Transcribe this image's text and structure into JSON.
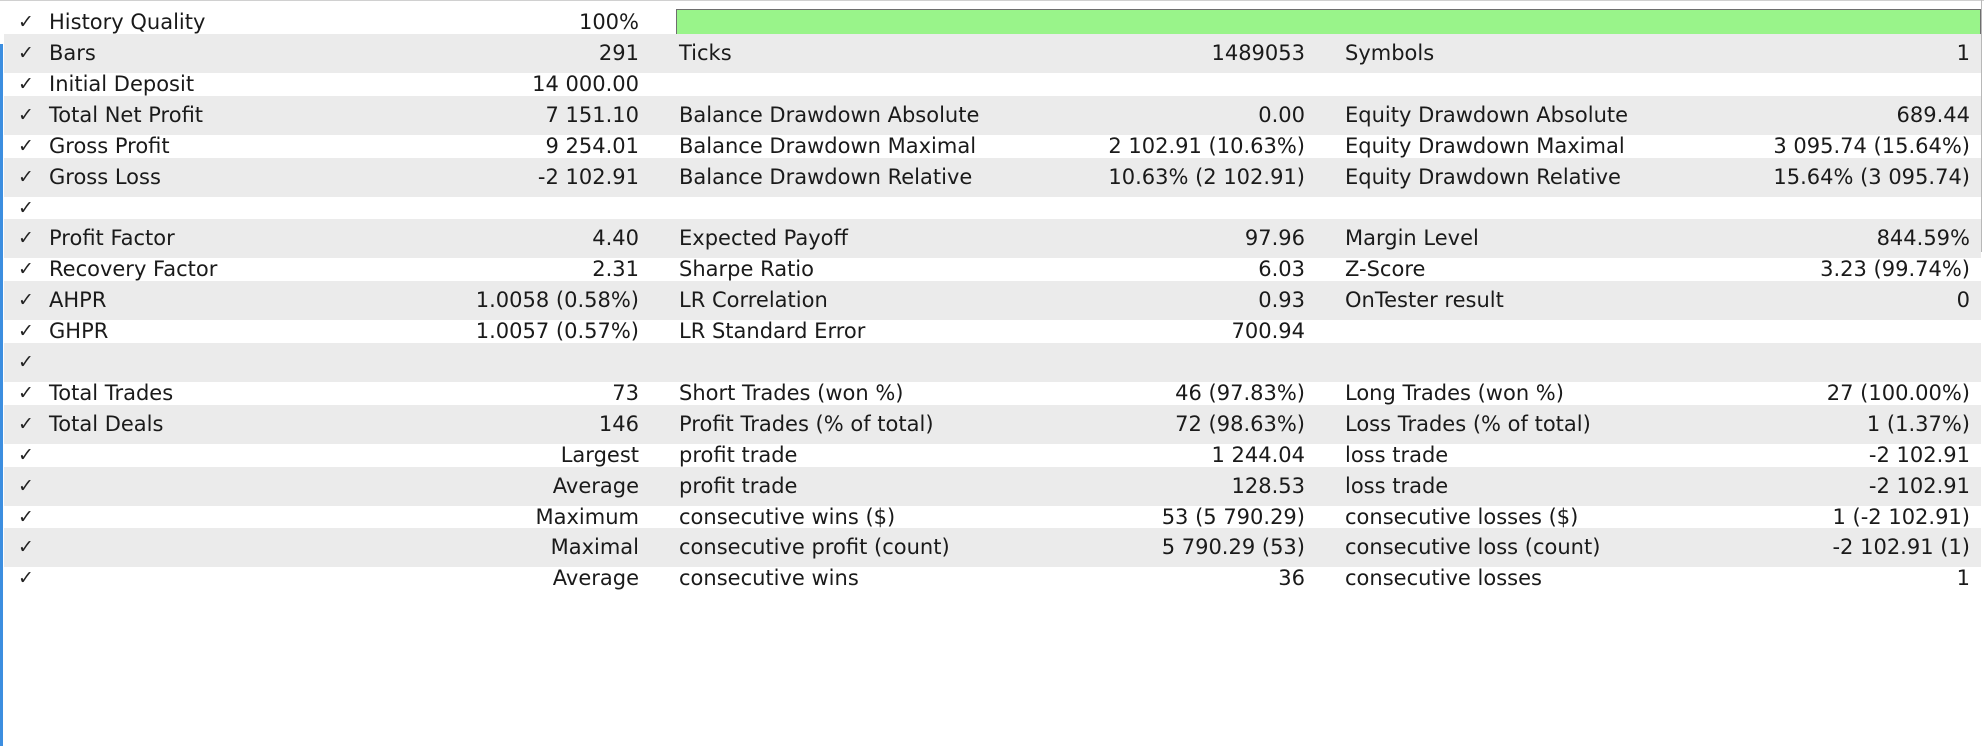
{
  "colors": {
    "quality_bar": "#99f48a",
    "row_shade": "#ebebeb",
    "accent_edge": "#3c8ee0"
  },
  "check_icon": "check-icon",
  "history_quality": {
    "label": "History Quality",
    "value": "100%",
    "fill_fraction": 1.0
  },
  "rows": [
    {
      "label1": "Bars",
      "value1": "291",
      "label2": "Ticks",
      "value2": "1489053",
      "label3": "Symbols",
      "value3": "1"
    },
    {
      "label1": "Initial Deposit",
      "value1": "14 000.00",
      "label2": "",
      "value2": "",
      "label3": "",
      "value3": ""
    },
    {
      "label1": "Total Net Profit",
      "value1": "7 151.10",
      "label2": "Balance Drawdown Absolute",
      "value2": "0.00",
      "label3": "Equity Drawdown Absolute",
      "value3": "689.44"
    },
    {
      "label1": "Gross Profit",
      "value1": "9 254.01",
      "label2": "Balance Drawdown Maximal",
      "value2": "2 102.91 (10.63%)",
      "label3": "Equity Drawdown Maximal",
      "value3": "3 095.74 (15.64%)"
    },
    {
      "label1": "Gross Loss",
      "value1": "-2 102.91",
      "label2": "Balance Drawdown Relative",
      "value2": "10.63% (2 102.91)",
      "label3": "Equity Drawdown Relative",
      "value3": "15.64% (3 095.74)"
    },
    {
      "label1": "",
      "value1": "",
      "label2": "",
      "value2": "",
      "label3": "",
      "value3": ""
    },
    {
      "label1": "Profit Factor",
      "value1": "4.40",
      "label2": "Expected Payoff",
      "value2": "97.96",
      "label3": "Margin Level",
      "value3": "844.59%"
    },
    {
      "label1": "Recovery Factor",
      "value1": "2.31",
      "label2": "Sharpe Ratio",
      "value2": "6.03",
      "label3": "Z-Score",
      "value3": "3.23 (99.74%)"
    },
    {
      "label1": "AHPR",
      "value1": "1.0058 (0.58%)",
      "label2": "LR Correlation",
      "value2": "0.93",
      "label3": "OnTester result",
      "value3": "0"
    },
    {
      "label1": "GHPR",
      "value1": "1.0057 (0.57%)",
      "label2": "LR Standard Error",
      "value2": "700.94",
      "label3": "",
      "value3": ""
    },
    {
      "label1": "",
      "value1": "",
      "label2": "",
      "value2": "",
      "label3": "",
      "value3": ""
    },
    {
      "label1": "Total Trades",
      "value1": "73",
      "label2": "Short Trades (won %)",
      "value2": "46 (97.83%)",
      "label3": "Long Trades (won %)",
      "value3": "27 (100.00%)"
    },
    {
      "label1": "Total Deals",
      "value1": "146",
      "label2": "Profit Trades (% of total)",
      "value2": "72 (98.63%)",
      "label3": "Loss Trades (% of total)",
      "value3": "1 (1.37%)"
    },
    {
      "label1": "",
      "value1": "Largest",
      "label2": "profit trade",
      "value2": "1 244.04",
      "label3": "loss trade",
      "value3": "-2 102.91"
    },
    {
      "label1": "",
      "value1": "Average",
      "label2": "profit trade",
      "value2": "128.53",
      "label3": "loss trade",
      "value3": "-2 102.91"
    },
    {
      "label1": "",
      "value1": "Maximum",
      "label2": "consecutive wins ($)",
      "value2": "53 (5 790.29)",
      "label3": "consecutive losses ($)",
      "value3": "1 (-2 102.91)"
    },
    {
      "label1": "",
      "value1": "Maximal",
      "label2": "consecutive profit (count)",
      "value2": "5 790.29 (53)",
      "label3": "consecutive loss (count)",
      "value3": "-2 102.91 (1)"
    },
    {
      "label1": "",
      "value1": "Average",
      "label2": "consecutive wins",
      "value2": "36",
      "label3": "consecutive losses",
      "value3": "1"
    }
  ]
}
